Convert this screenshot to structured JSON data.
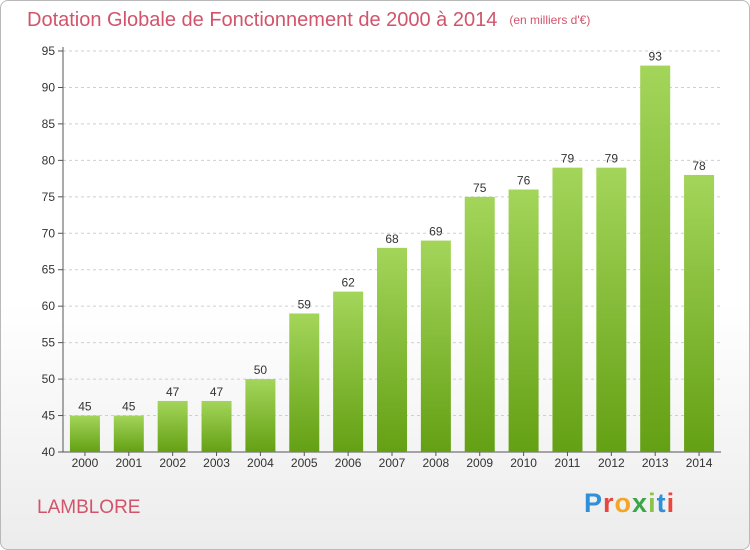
{
  "header": {
    "title": "Dotation Globale de Fonctionnement de 2000 à 2014",
    "unit": "(en milliers d'€)"
  },
  "footer": {
    "place": "LAMBLORE",
    "brand": "Proxiti",
    "brand_colors": [
      "#2f8fd8",
      "#e8473e",
      "#f2a526",
      "#3aa648",
      "#8bc34a",
      "#2f8fd8",
      "#e8473e"
    ]
  },
  "colors": {
    "bar_light": "#a3d55a",
    "bar_dark": "#64a014",
    "grid": "#cfcfcf",
    "title": "#d2546b"
  },
  "chart_data": {
    "type": "bar",
    "title": "Dotation Globale de Fonctionnement de 2000 à 2014",
    "subtitle": "(en milliers d'€)",
    "categories": [
      "2000",
      "2001",
      "2002",
      "2003",
      "2004",
      "2005",
      "2006",
      "2007",
      "2008",
      "2009",
      "2010",
      "2011",
      "2012",
      "2013",
      "2014"
    ],
    "values": [
      45,
      45,
      47,
      47,
      50,
      59,
      62,
      68,
      69,
      75,
      76,
      79,
      79,
      93,
      78
    ],
    "ylim": [
      40,
      95
    ],
    "yticks": [
      40,
      45,
      50,
      55,
      60,
      65,
      70,
      75,
      80,
      85,
      90,
      95
    ],
    "grid": true,
    "legend": "none"
  }
}
